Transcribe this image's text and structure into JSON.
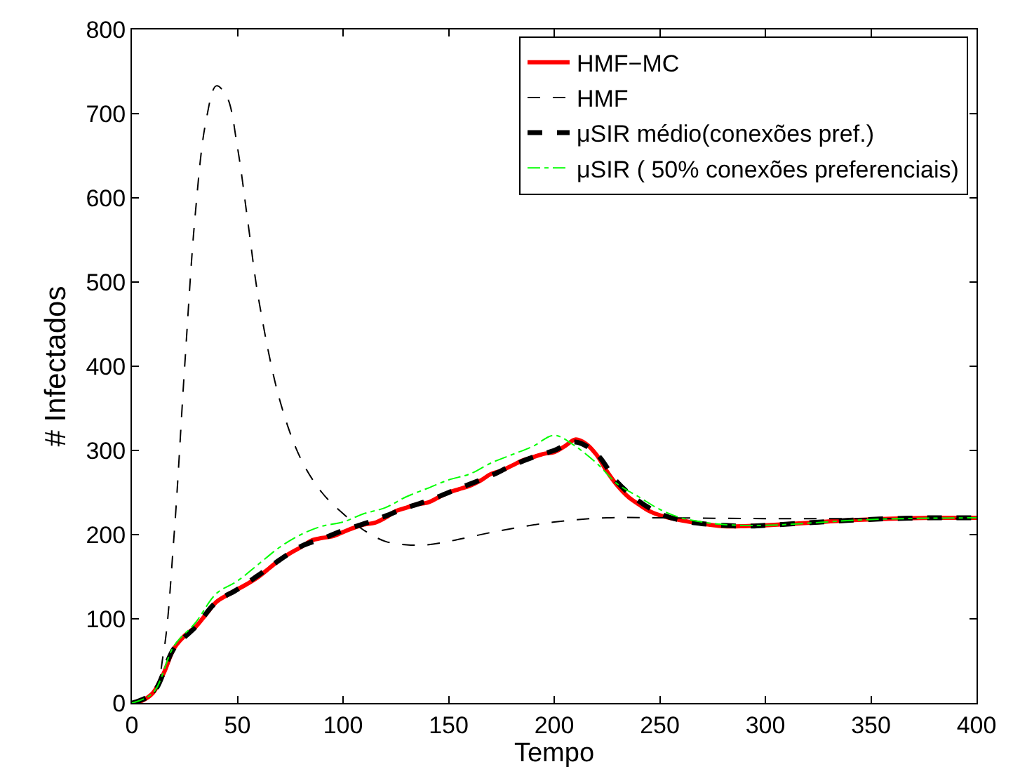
{
  "chart_data": {
    "type": "line",
    "xlabel": "Tempo",
    "ylabel": "# Infectados",
    "xlim": [
      0,
      400
    ],
    "ylim": [
      0,
      800
    ],
    "xticks": [
      0,
      50,
      100,
      150,
      200,
      250,
      300,
      350,
      400
    ],
    "yticks": [
      0,
      100,
      200,
      300,
      400,
      500,
      600,
      700,
      800
    ],
    "legend": "top right",
    "marker": "none",
    "series": [
      {
        "name": "HMF−MC",
        "color": "#ff0000",
        "line_style": "solid",
        "x": [
          0,
          5,
          10,
          15,
          20,
          25,
          30,
          35,
          40,
          45,
          50,
          55,
          60,
          65,
          70,
          75,
          80,
          85,
          90,
          95,
          100,
          105,
          110,
          115,
          120,
          125,
          130,
          135,
          140,
          145,
          150,
          155,
          160,
          165,
          170,
          175,
          180,
          185,
          190,
          195,
          200,
          205,
          210,
          215,
          220,
          225,
          230,
          235,
          240,
          245,
          250,
          260,
          270,
          280,
          290,
          300,
          320,
          340,
          360,
          380,
          400
        ],
        "values": [
          0,
          3,
          12,
          35,
          65,
          80,
          90,
          105,
          120,
          128,
          135,
          142,
          150,
          160,
          170,
          178,
          185,
          193,
          196,
          198,
          203,
          208,
          212,
          214,
          220,
          228,
          232,
          236,
          238,
          244,
          250,
          254,
          258,
          264,
          272,
          276,
          282,
          288,
          292,
          296,
          298,
          305,
          313,
          308,
          295,
          275,
          258,
          245,
          236,
          228,
          223,
          217,
          213,
          210,
          210,
          211,
          214,
          217,
          219,
          220,
          220
        ]
      },
      {
        "name": "HMF",
        "color": "#000000",
        "line_style": "dashed",
        "x": [
          0,
          10,
          15,
          20,
          25,
          30,
          35,
          40,
          45,
          50,
          55,
          60,
          70,
          80,
          90,
          100,
          110,
          120,
          130,
          140,
          150,
          175,
          200,
          225,
          250,
          300,
          400
        ],
        "values": [
          0,
          10,
          60,
          200,
          400,
          580,
          690,
          733,
          720,
          660,
          570,
          480,
          360,
          290,
          250,
          225,
          205,
          192,
          188,
          188,
          192,
          205,
          215,
          220,
          220,
          219,
          219
        ]
      },
      {
        "name": "μSIR médio(conexões pref.)",
        "color": "#000000",
        "line_style": "dashed",
        "x": [
          0,
          10,
          20,
          30,
          40,
          50,
          60,
          70,
          80,
          90,
          100,
          110,
          120,
          130,
          140,
          150,
          160,
          170,
          180,
          190,
          200,
          210,
          220,
          230,
          240,
          250,
          260,
          270,
          280,
          290,
          300,
          320,
          340,
          360,
          380,
          400
        ],
        "values": [
          0,
          12,
          65,
          90,
          120,
          135,
          152,
          170,
          186,
          195,
          205,
          213,
          222,
          232,
          240,
          250,
          260,
          270,
          282,
          292,
          300,
          310,
          296,
          262,
          240,
          225,
          217,
          213,
          211,
          210,
          211,
          214,
          217,
          219,
          220,
          220
        ]
      },
      {
        "name": "μSIR ( 50% conexões preferenciais)",
        "color": "#00ff00",
        "line_style": "dashdot",
        "x": [
          0,
          10,
          20,
          30,
          40,
          50,
          60,
          70,
          80,
          90,
          100,
          110,
          120,
          130,
          140,
          150,
          160,
          170,
          180,
          190,
          200,
          210,
          220,
          230,
          240,
          250,
          260,
          270,
          280,
          300,
          350,
          400
        ],
        "values": [
          0,
          12,
          68,
          95,
          130,
          145,
          165,
          185,
          200,
          210,
          215,
          225,
          232,
          245,
          255,
          265,
          272,
          285,
          295,
          305,
          318,
          305,
          285,
          260,
          245,
          230,
          220,
          215,
          212,
          211,
          218,
          220
        ]
      }
    ]
  }
}
